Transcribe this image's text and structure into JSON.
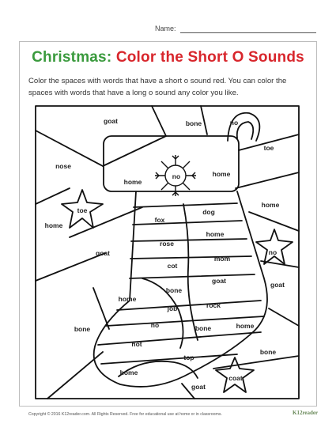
{
  "header": {
    "name_label": "Name:"
  },
  "title": {
    "word1": "Christmas:",
    "word2": "Color the Short O Sounds"
  },
  "instructions": "Color the spaces with words that have a short o sound red. You can color the spaces with words that have a long o sound any color you like.",
  "words": {
    "goat_top": "goat",
    "bone_top": "bone",
    "no_toe_top": "no",
    "toe_right": "toe",
    "nose_left": "nose",
    "home_cuff": "home",
    "no_snowflake": "no",
    "home_right_cuff": "home",
    "toe_star": "toe",
    "home_right": "home",
    "home_left": "home",
    "fox": "fox",
    "dog": "dog",
    "home_mid": "home",
    "rose": "rose",
    "no_star": "no",
    "goat_left": "goat",
    "cot": "cot",
    "mom": "mom",
    "goat_mid": "goat",
    "goat_right": "goat",
    "bone_mid": "bone",
    "home_low_left": "home",
    "job": "job",
    "rock": "rock",
    "no_low": "no",
    "bone_low": "bone",
    "home_low_right": "home",
    "bone_left": "bone",
    "hot": "hot",
    "bone_right": "bone",
    "top": "top",
    "home_bottom": "home",
    "coat": "coat",
    "goat_bottom": "goat"
  },
  "footer": {
    "copyright": "Copyright © 2016  K12reader.com. All Rights Reserved. Free for educational use at home or in classrooms.",
    "logo": "K12reader"
  }
}
